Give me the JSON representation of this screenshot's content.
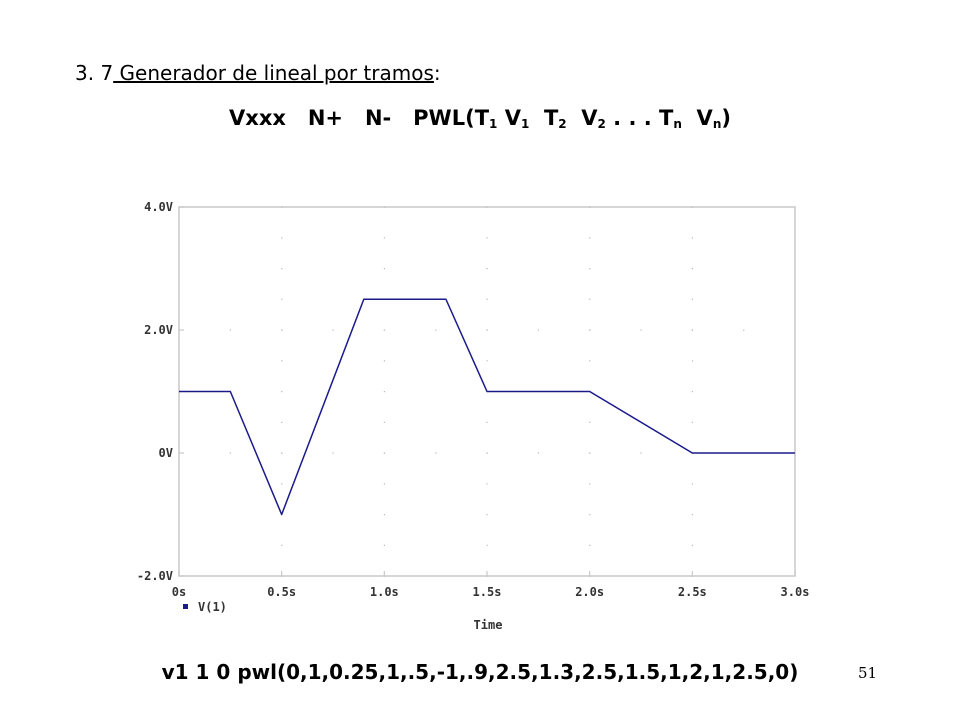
{
  "heading": {
    "number": "3. 7",
    "title": " Generador de lineal por tramos",
    "colon": ":"
  },
  "syntax": {
    "prefix": "Vxxx   N+   N-   PWL(T",
    "t1": "1",
    "v_label": " V",
    "v1": "1",
    "t2_label": "  T",
    "t2": "2",
    "v2_label": "  V",
    "v2": "2",
    "dots": " . . . T",
    "tn": "n",
    "vn_label": "  V",
    "vn": "n",
    "suffix": ")"
  },
  "command": "v1 1 0 pwl(0,1,0.25,1,.5,-1,.9,2.5,1.3,2.5,1.5,1,2,1,2.5,0)",
  "page_number": "51",
  "chart_data": {
    "type": "line",
    "x_tick_labels": [
      "0s",
      "0.5s",
      "1.0s",
      "1.5s",
      "2.0s",
      "2.5s",
      "3.0s"
    ],
    "x_ticks": [
      0,
      0.5,
      1.0,
      1.5,
      2.0,
      2.5,
      3.0
    ],
    "y_tick_labels": [
      "4.0V",
      "2.0V",
      "0V",
      "-2.0V"
    ],
    "y_ticks": [
      4,
      2,
      0,
      -2
    ],
    "xlim": [
      0,
      3.0
    ],
    "ylim": [
      -2,
      4
    ],
    "xlabel": "Time",
    "ylabel": "",
    "grid": "dotted",
    "legend_position": "bottom-left",
    "series": [
      {
        "name": "V(1)",
        "color": "#1a1a8c",
        "x": [
          0,
          0.25,
          0.5,
          0.9,
          1.3,
          1.5,
          2.0,
          2.5,
          3.0
        ],
        "y": [
          1,
          1,
          -1,
          2.5,
          2.5,
          1,
          1,
          0,
          0
        ]
      }
    ]
  }
}
